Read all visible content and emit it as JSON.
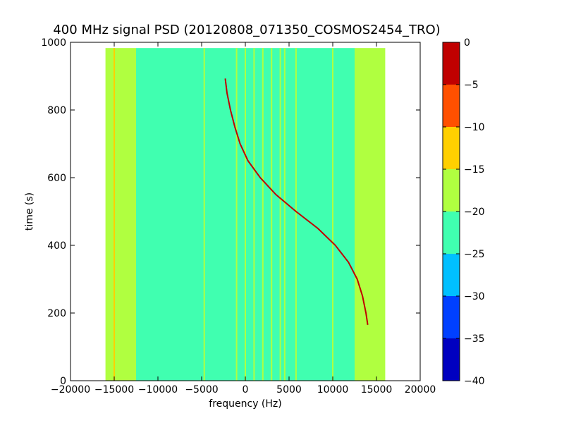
{
  "chart_data": {
    "type": "heatmap",
    "title": "400 MHz signal PSD (20120808_071350_COSMOS2454_TRO)",
    "xlabel": "frequency (Hz)",
    "ylabel": "time (s)",
    "xlim": [
      -20000,
      20000
    ],
    "ylim": [
      0,
      1000
    ],
    "x_ticks": [
      "−20000",
      "−15000",
      "−10000",
      "−5000",
      "0",
      "5000",
      "10000",
      "15000",
      "20000"
    ],
    "x_tick_values": [
      -20000,
      -15000,
      -10000,
      -5000,
      0,
      5000,
      10000,
      15000,
      20000
    ],
    "y_ticks": [
      "0",
      "200",
      "400",
      "600",
      "800",
      "1000"
    ],
    "y_tick_values": [
      0,
      200,
      400,
      600,
      800,
      1000
    ],
    "data_extent": {
      "freq": [
        -16000,
        16000
      ],
      "time": [
        0,
        983
      ]
    },
    "band_regions": [
      {
        "freq": [
          -16000,
          -12500
        ],
        "level": -18
      },
      {
        "freq": [
          -12500,
          12500
        ],
        "level": -22
      },
      {
        "freq": [
          12500,
          16000
        ],
        "level": -18
      }
    ],
    "carriers": [
      {
        "freq": -15000,
        "level": -12
      },
      {
        "freq": -4700,
        "level": -18
      },
      {
        "freq": -1000,
        "level": -18
      },
      {
        "freq": 0,
        "level": -18
      },
      {
        "freq": 1000,
        "level": -18
      },
      {
        "freq": 2000,
        "level": -18
      },
      {
        "freq": 3000,
        "level": -18
      },
      {
        "freq": 4000,
        "level": -18
      },
      {
        "freq": 4500,
        "level": -18
      },
      {
        "freq": 5800,
        "level": -18
      },
      {
        "freq": 10000,
        "level": -18
      }
    ],
    "doppler_curve": {
      "level": -3,
      "points": [
        {
          "time": 893,
          "freq": -2300
        },
        {
          "time": 850,
          "freq": -2100
        },
        {
          "time": 800,
          "freq": -1700
        },
        {
          "time": 750,
          "freq": -1200
        },
        {
          "time": 700,
          "freq": -600
        },
        {
          "time": 650,
          "freq": 300
        },
        {
          "time": 600,
          "freq": 1700
        },
        {
          "time": 550,
          "freq": 3500
        },
        {
          "time": 500,
          "freq": 5800
        },
        {
          "time": 450,
          "freq": 8300
        },
        {
          "time": 400,
          "freq": 10300
        },
        {
          "time": 350,
          "freq": 11800
        },
        {
          "time": 300,
          "freq": 12800
        },
        {
          "time": 250,
          "freq": 13400
        },
        {
          "time": 200,
          "freq": 13800
        },
        {
          "time": 165,
          "freq": 14000
        }
      ]
    },
    "colorbar": {
      "min": -40,
      "max": 0,
      "ticks": [
        "−40",
        "−35",
        "−30",
        "−25",
        "−20",
        "−15",
        "−10",
        "−5",
        "0"
      ],
      "tick_values": [
        -40,
        -35,
        -30,
        -25,
        -20,
        -15,
        -10,
        -5,
        0
      ],
      "bands": [
        {
          "from": -40,
          "to": -35,
          "color": "#0000c0"
        },
        {
          "from": -35,
          "to": -30,
          "color": "#0040ff"
        },
        {
          "from": -30,
          "to": -25,
          "color": "#00c0ff"
        },
        {
          "from": -25,
          "to": -20,
          "color": "#40ffb0"
        },
        {
          "from": -20,
          "to": -15,
          "color": "#b0ff40"
        },
        {
          "from": -15,
          "to": -10,
          "color": "#ffd000"
        },
        {
          "from": -10,
          "to": -5,
          "color": "#ff5000"
        },
        {
          "from": -5,
          "to": 0,
          "color": "#c00000"
        }
      ]
    }
  }
}
